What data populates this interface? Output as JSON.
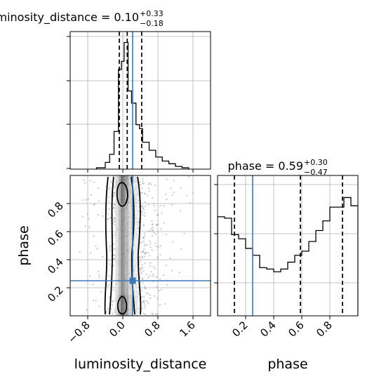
{
  "chart_data": {
    "type": "corner",
    "colors": {
      "truth": "#3a7ab8",
      "hist": "#000000",
      "grid": "#b0b0b0",
      "scatter": "#9a9a9a"
    },
    "parameters": [
      "luminosity_distance",
      "phase"
    ],
    "truths": {
      "luminosity_distance": 0.3,
      "phase": 0.25
    },
    "panels": [
      {
        "id": "ld-hist",
        "type": "histogram",
        "title": {
          "main": "luminosity_distance = 0.10",
          "plus": "+0.33",
          "minus": "−0.18"
        },
        "xlim": [
          -1.2,
          2.0
        ],
        "bins": [
          {
            "x0": -0.6,
            "x1": -0.4,
            "count": 0.01
          },
          {
            "x0": -0.4,
            "x1": -0.3,
            "count": 0.05
          },
          {
            "x0": -0.3,
            "x1": -0.2,
            "count": 0.11
          },
          {
            "x0": -0.2,
            "x1": -0.1,
            "count": 0.28
          },
          {
            "x0": -0.1,
            "x1": -0.03,
            "count": 0.74
          },
          {
            "x0": -0.03,
            "x1": 0.03,
            "count": 0.8
          },
          {
            "x0": 0.03,
            "x1": 0.12,
            "count": 0.94
          },
          {
            "x0": 0.12,
            "x1": 0.2,
            "count": 0.58
          },
          {
            "x0": 0.2,
            "x1": 0.3,
            "count": 0.49
          },
          {
            "x0": 0.3,
            "x1": 0.38,
            "count": 0.33
          },
          {
            "x0": 0.38,
            "x1": 0.45,
            "count": 0.3
          },
          {
            "x0": 0.45,
            "x1": 0.6,
            "count": 0.2
          },
          {
            "x0": 0.6,
            "x1": 0.75,
            "count": 0.14
          },
          {
            "x0": 0.75,
            "x1": 0.9,
            "count": 0.09
          },
          {
            "x0": 0.9,
            "x1": 1.05,
            "count": 0.06
          },
          {
            "x0": 1.05,
            "x1": 1.2,
            "count": 0.04
          },
          {
            "x0": 1.2,
            "x1": 1.35,
            "count": 0.02
          },
          {
            "x0": 1.35,
            "x1": 1.5,
            "count": 0.01
          }
        ],
        "quantiles": [
          -0.08,
          0.1,
          0.43
        ]
      },
      {
        "id": "phase-hist",
        "type": "histogram",
        "title": {
          "main": "phase = 0.59",
          "plus": "+0.30",
          "minus": "−0.47"
        },
        "xlim": [
          0.0,
          1.0
        ],
        "xticks": [
          "0.2",
          "0.4",
          "0.6",
          "0.8"
        ],
        "xlabel": "phase",
        "bins": [
          {
            "x0": 0.0,
            "x1": 0.05,
            "count": 0.72
          },
          {
            "x0": 0.05,
            "x1": 0.1,
            "count": 0.71
          },
          {
            "x0": 0.1,
            "x1": 0.15,
            "count": 0.59
          },
          {
            "x0": 0.15,
            "x1": 0.2,
            "count": 0.56
          },
          {
            "x0": 0.2,
            "x1": 0.25,
            "count": 0.49
          },
          {
            "x0": 0.25,
            "x1": 0.3,
            "count": 0.44
          },
          {
            "x0": 0.3,
            "x1": 0.35,
            "count": 0.35
          },
          {
            "x0": 0.35,
            "x1": 0.4,
            "count": 0.34
          },
          {
            "x0": 0.4,
            "x1": 0.45,
            "count": 0.32
          },
          {
            "x0": 0.45,
            "x1": 0.5,
            "count": 0.34
          },
          {
            "x0": 0.5,
            "x1": 0.55,
            "count": 0.39
          },
          {
            "x0": 0.55,
            "x1": 0.6,
            "count": 0.44
          },
          {
            "x0": 0.6,
            "x1": 0.65,
            "count": 0.47
          },
          {
            "x0": 0.65,
            "x1": 0.7,
            "count": 0.54
          },
          {
            "x0": 0.7,
            "x1": 0.75,
            "count": 0.62
          },
          {
            "x0": 0.75,
            "x1": 0.8,
            "count": 0.69
          },
          {
            "x0": 0.8,
            "x1": 0.9,
            "count": 0.79
          },
          {
            "x0": 0.9,
            "x1": 0.95,
            "count": 0.86
          },
          {
            "x0": 0.95,
            "x1": 1.0,
            "count": 0.8
          }
        ],
        "quantiles": [
          0.12,
          0.59,
          0.89
        ]
      },
      {
        "id": "joint",
        "type": "2d-density",
        "xlim": [
          -1.2,
          2.0
        ],
        "ylim": [
          0.0,
          1.0
        ],
        "xticks": [
          "−0.8",
          "0.0",
          "0.8",
          "1.6"
        ],
        "yticks": [
          "0.2",
          "0.4",
          "0.6",
          "0.8"
        ],
        "xlabel": "luminosity_distance",
        "ylabel": "phase",
        "truth_marker": {
          "x": 0.3,
          "y": 0.25
        }
      }
    ]
  }
}
